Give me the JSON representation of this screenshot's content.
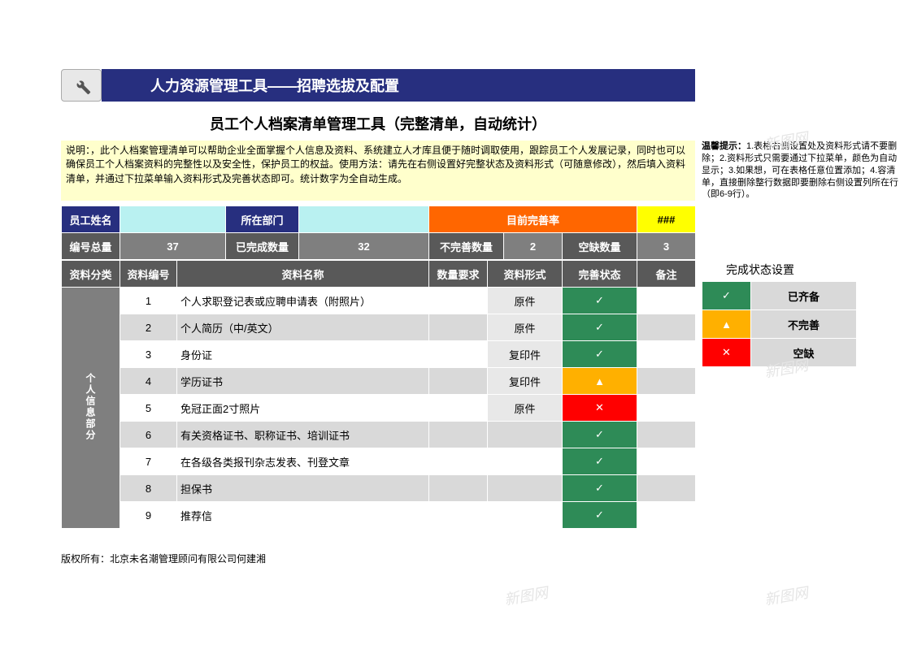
{
  "banner": {
    "title": "人力资源管理工具——招聘选拔及配置"
  },
  "subheader": "员工个人档案清单管理工具（完整清单，自动统计）",
  "description_main": "说明：，此个人档案管理清单可以帮助企业全面掌握个人信息及资料、系统建立人才库且便于随时调取使用，跟踪员工个人发展记录，同时也可以确保员工个人档案资料的完整性以及安全性，保护员工的权益。使用方法：请先在右侧设置好完整状态及资料形式（可随意修改），然后填入资料清单，并通过下拉菜单输入资料形式及完善状态即可。统计数字为全自动生成。",
  "description_side": "温馨提示：1.表格右侧设置处及资料形式请不要删除；2.资料形式只需要通过下拉菜单，颜色为自动显示；3.如果想，可在表格任意位置添加；4.容清单，直接删除整行数据即要删除右侧设置列所在行（即6-9行）。",
  "info_bar": {
    "name_label": "员工姓名",
    "name_value": "",
    "dept_label": "所在部门",
    "dept_value": "",
    "rate_label": "目前完善率",
    "rate_value": "###"
  },
  "stats_bar": {
    "total_label": "编号总量",
    "total_value": "37",
    "done_label": "已完成数量",
    "done_value": "32",
    "incomplete_label": "不完善数量",
    "incomplete_value": "2",
    "missing_label": "空缺数量",
    "missing_value": "3"
  },
  "columns": {
    "cat": "资料分类",
    "no": "资料编号",
    "name": "资料名称",
    "qty": "数量要求",
    "form": "资料形式",
    "status": "完善状态",
    "note": "备注"
  },
  "category_label": "个人信息部分",
  "rows": [
    {
      "no": "1",
      "name": "个人求职登记表或应聘申请表（附照片）",
      "qty": "",
      "form": "原件",
      "status": "green"
    },
    {
      "no": "2",
      "name": "个人简历（中/英文）",
      "qty": "",
      "form": "原件",
      "status": "green"
    },
    {
      "no": "3",
      "name": "身份证",
      "qty": "",
      "form": "复印件",
      "status": "green"
    },
    {
      "no": "4",
      "name": "学历证书",
      "qty": "",
      "form": "复印件",
      "status": "orange"
    },
    {
      "no": "5",
      "name": "免冠正面2寸照片",
      "qty": "",
      "form": "原件",
      "status": "red"
    },
    {
      "no": "6",
      "name": "有关资格证书、职称证书、培训证书",
      "qty": "",
      "form": "",
      "status": "green"
    },
    {
      "no": "7",
      "name": "在各级各类报刊杂志发表、刊登文章",
      "qty": "",
      "form": "",
      "status": "green"
    },
    {
      "no": "8",
      "name": "担保书",
      "qty": "",
      "form": "",
      "status": "green"
    },
    {
      "no": "9",
      "name": "推荐信",
      "qty": "",
      "form": "",
      "status": "green"
    }
  ],
  "legend": {
    "title": "完成状态设置",
    "items": [
      {
        "color": "green",
        "icon": "check",
        "label": "已齐备"
      },
      {
        "color": "orangeY",
        "icon": "tri",
        "label": "不完善"
      },
      {
        "color": "red",
        "icon": "x",
        "label": "空缺"
      }
    ]
  },
  "footer": "版权所有：北京未名潮管理顾问有限公司何建湘",
  "watermarks": [
    "新图网",
    "新图网",
    "新图网",
    "新图网",
    "新图网"
  ],
  "colors": {
    "navy": "#272f7f",
    "orange": "#ff6600",
    "yellow": "#ffff00",
    "midgray": "#7f7f7f",
    "gray555": "#595959",
    "ltgray": "#d9d9d9",
    "green": "#2e8b57",
    "orangeY": "#ffb000",
    "red": "#ff0000",
    "cyan": "#b9f1f1"
  }
}
